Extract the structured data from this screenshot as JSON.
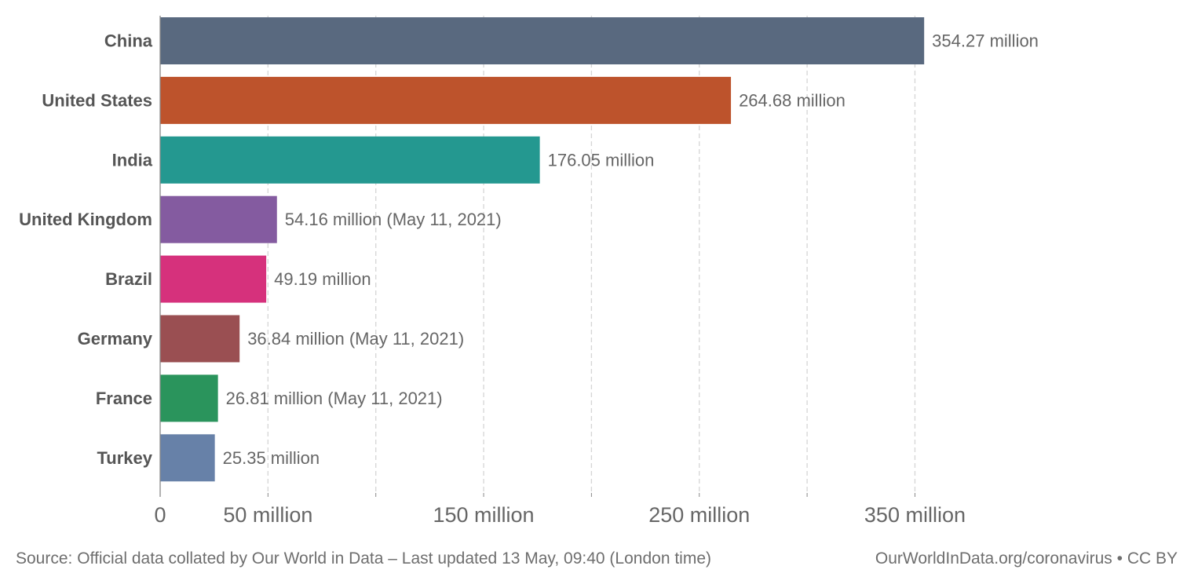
{
  "chart_data": {
    "type": "bar",
    "orientation": "horizontal",
    "title": "",
    "xlabel": "",
    "ylabel": "",
    "xlim": [
      0,
      375
    ],
    "unit": "million",
    "grid": true,
    "ticks": [
      {
        "value": 0,
        "label": "0"
      },
      {
        "value": 50,
        "label": "50 million"
      },
      {
        "value": 100,
        "label": ""
      },
      {
        "value": 150,
        "label": "150 million"
      },
      {
        "value": 200,
        "label": ""
      },
      {
        "value": 250,
        "label": "250 million"
      },
      {
        "value": 300,
        "label": ""
      },
      {
        "value": 350,
        "label": "350 million"
      }
    ],
    "bars": [
      {
        "category": "China",
        "value": 354.27,
        "label": "354.27 million",
        "color": "#59697f"
      },
      {
        "category": "United States",
        "value": 264.68,
        "label": "264.68 million",
        "color": "#bd532c"
      },
      {
        "category": "India",
        "value": 176.05,
        "label": "176.05 million",
        "color": "#249890"
      },
      {
        "category": "United Kingdom",
        "value": 54.16,
        "label": "54.16 million (May 11, 2021)",
        "color": "#845ba0"
      },
      {
        "category": "Brazil",
        "value": 49.19,
        "label": "49.19 million",
        "color": "#d6317c"
      },
      {
        "category": "Germany",
        "value": 36.84,
        "label": "36.84 million (May 11, 2021)",
        "color": "#9a4f52"
      },
      {
        "category": "France",
        "value": 26.81,
        "label": "26.81 million (May 11, 2021)",
        "color": "#2a945c"
      },
      {
        "category": "Turkey",
        "value": 25.35,
        "label": "25.35 million",
        "color": "#6781a8"
      }
    ],
    "grid_color": "#d6d6d6",
    "axis_color": "#888888"
  },
  "footer": {
    "source": "Source: Official data collated by Our World in Data – Last updated 13 May, 09:40 (London time)",
    "credit": "OurWorldInData.org/coronavirus • CC BY"
  }
}
